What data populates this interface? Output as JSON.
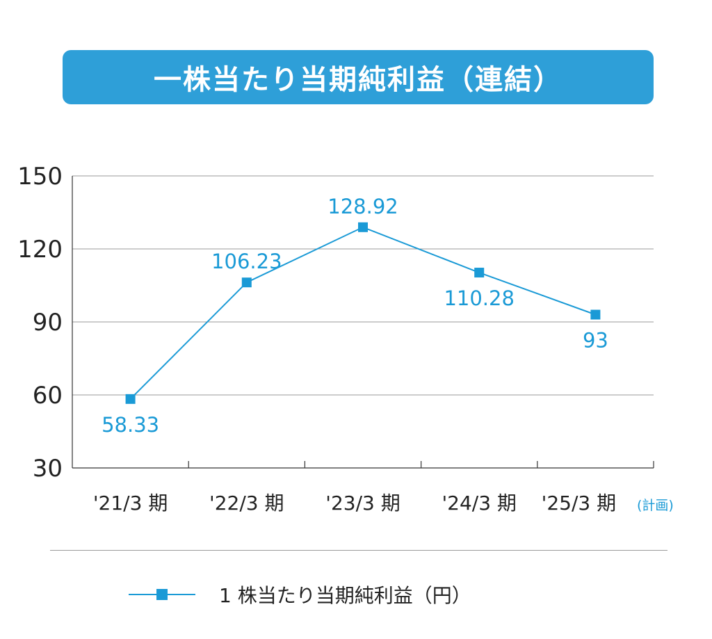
{
  "title": "一株当たり当期純利益（連結）",
  "chart_data": {
    "type": "line",
    "categories": [
      "'21/3 期",
      "'22/3 期",
      "'23/3 期",
      "'24/3 期",
      "'25/3 期"
    ],
    "category_notes": [
      "",
      "",
      "",
      "",
      "(計画)"
    ],
    "series": [
      {
        "name": "1 株当たり当期純利益（円）",
        "values": [
          58.33,
          106.23,
          128.92,
          110.28,
          93
        ],
        "value_labels": [
          "58.33",
          "106.23",
          "128.92",
          "110.28",
          "93"
        ],
        "label_side": [
          "below",
          "above",
          "above",
          "below",
          "below"
        ],
        "marker": "square"
      }
    ],
    "ylim": [
      30,
      150
    ],
    "yticks": [
      30,
      60,
      90,
      120,
      150
    ],
    "grid": true,
    "legend_position": "bottom",
    "colors": {
      "series": "#1a9ad6",
      "grid": "#9a9a9a",
      "banner": "#2e9fd8"
    }
  }
}
